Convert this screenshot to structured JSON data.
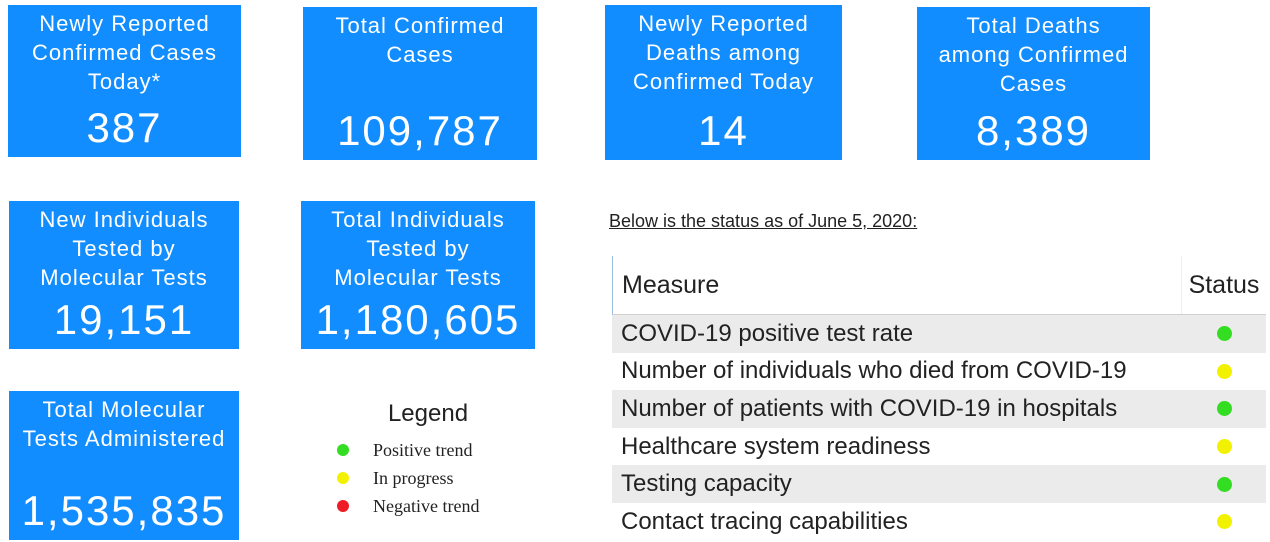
{
  "tiles": [
    {
      "title": "Newly Reported Confirmed Cases Today*",
      "value": "387"
    },
    {
      "title": "Total Confirmed Cases",
      "value": "109,787"
    },
    {
      "title": "Newly Reported Deaths among Confirmed Today",
      "value": "14"
    },
    {
      "title": "Total Deaths among Confirmed Cases",
      "value": "8,389"
    },
    {
      "title": "New Individuals Tested by Molecular Tests",
      "value": "19,151"
    },
    {
      "title": "Total Individuals Tested by Molecular Tests",
      "value": "1,180,605"
    },
    {
      "title": "Total Molecular Tests Administered",
      "value": "1,535,835"
    }
  ],
  "legend": {
    "title": "Legend",
    "items": [
      {
        "label": "Positive trend",
        "color": "#33dd22"
      },
      {
        "label": "In progress",
        "color": "#f2f200"
      },
      {
        "label": "Negative trend",
        "color": "#ee1c24"
      }
    ]
  },
  "status_caption": "Below is the status as of June 5, 2020:",
  "table": {
    "header": [
      "Measure",
      "Status"
    ],
    "rows": [
      {
        "measure": "COVID-19 positive test rate",
        "color": "#33dd22"
      },
      {
        "measure": "Number of individuals who died from COVID-19",
        "color": "#f2f200"
      },
      {
        "measure": "Number of patients with COVID-19 in hospitals",
        "color": "#33dd22"
      },
      {
        "measure": "Healthcare system readiness",
        "color": "#f2f200"
      },
      {
        "measure": "Testing capacity",
        "color": "#33dd22"
      },
      {
        "measure": "Contact tracing capabilities",
        "color": "#f2f200"
      }
    ]
  }
}
